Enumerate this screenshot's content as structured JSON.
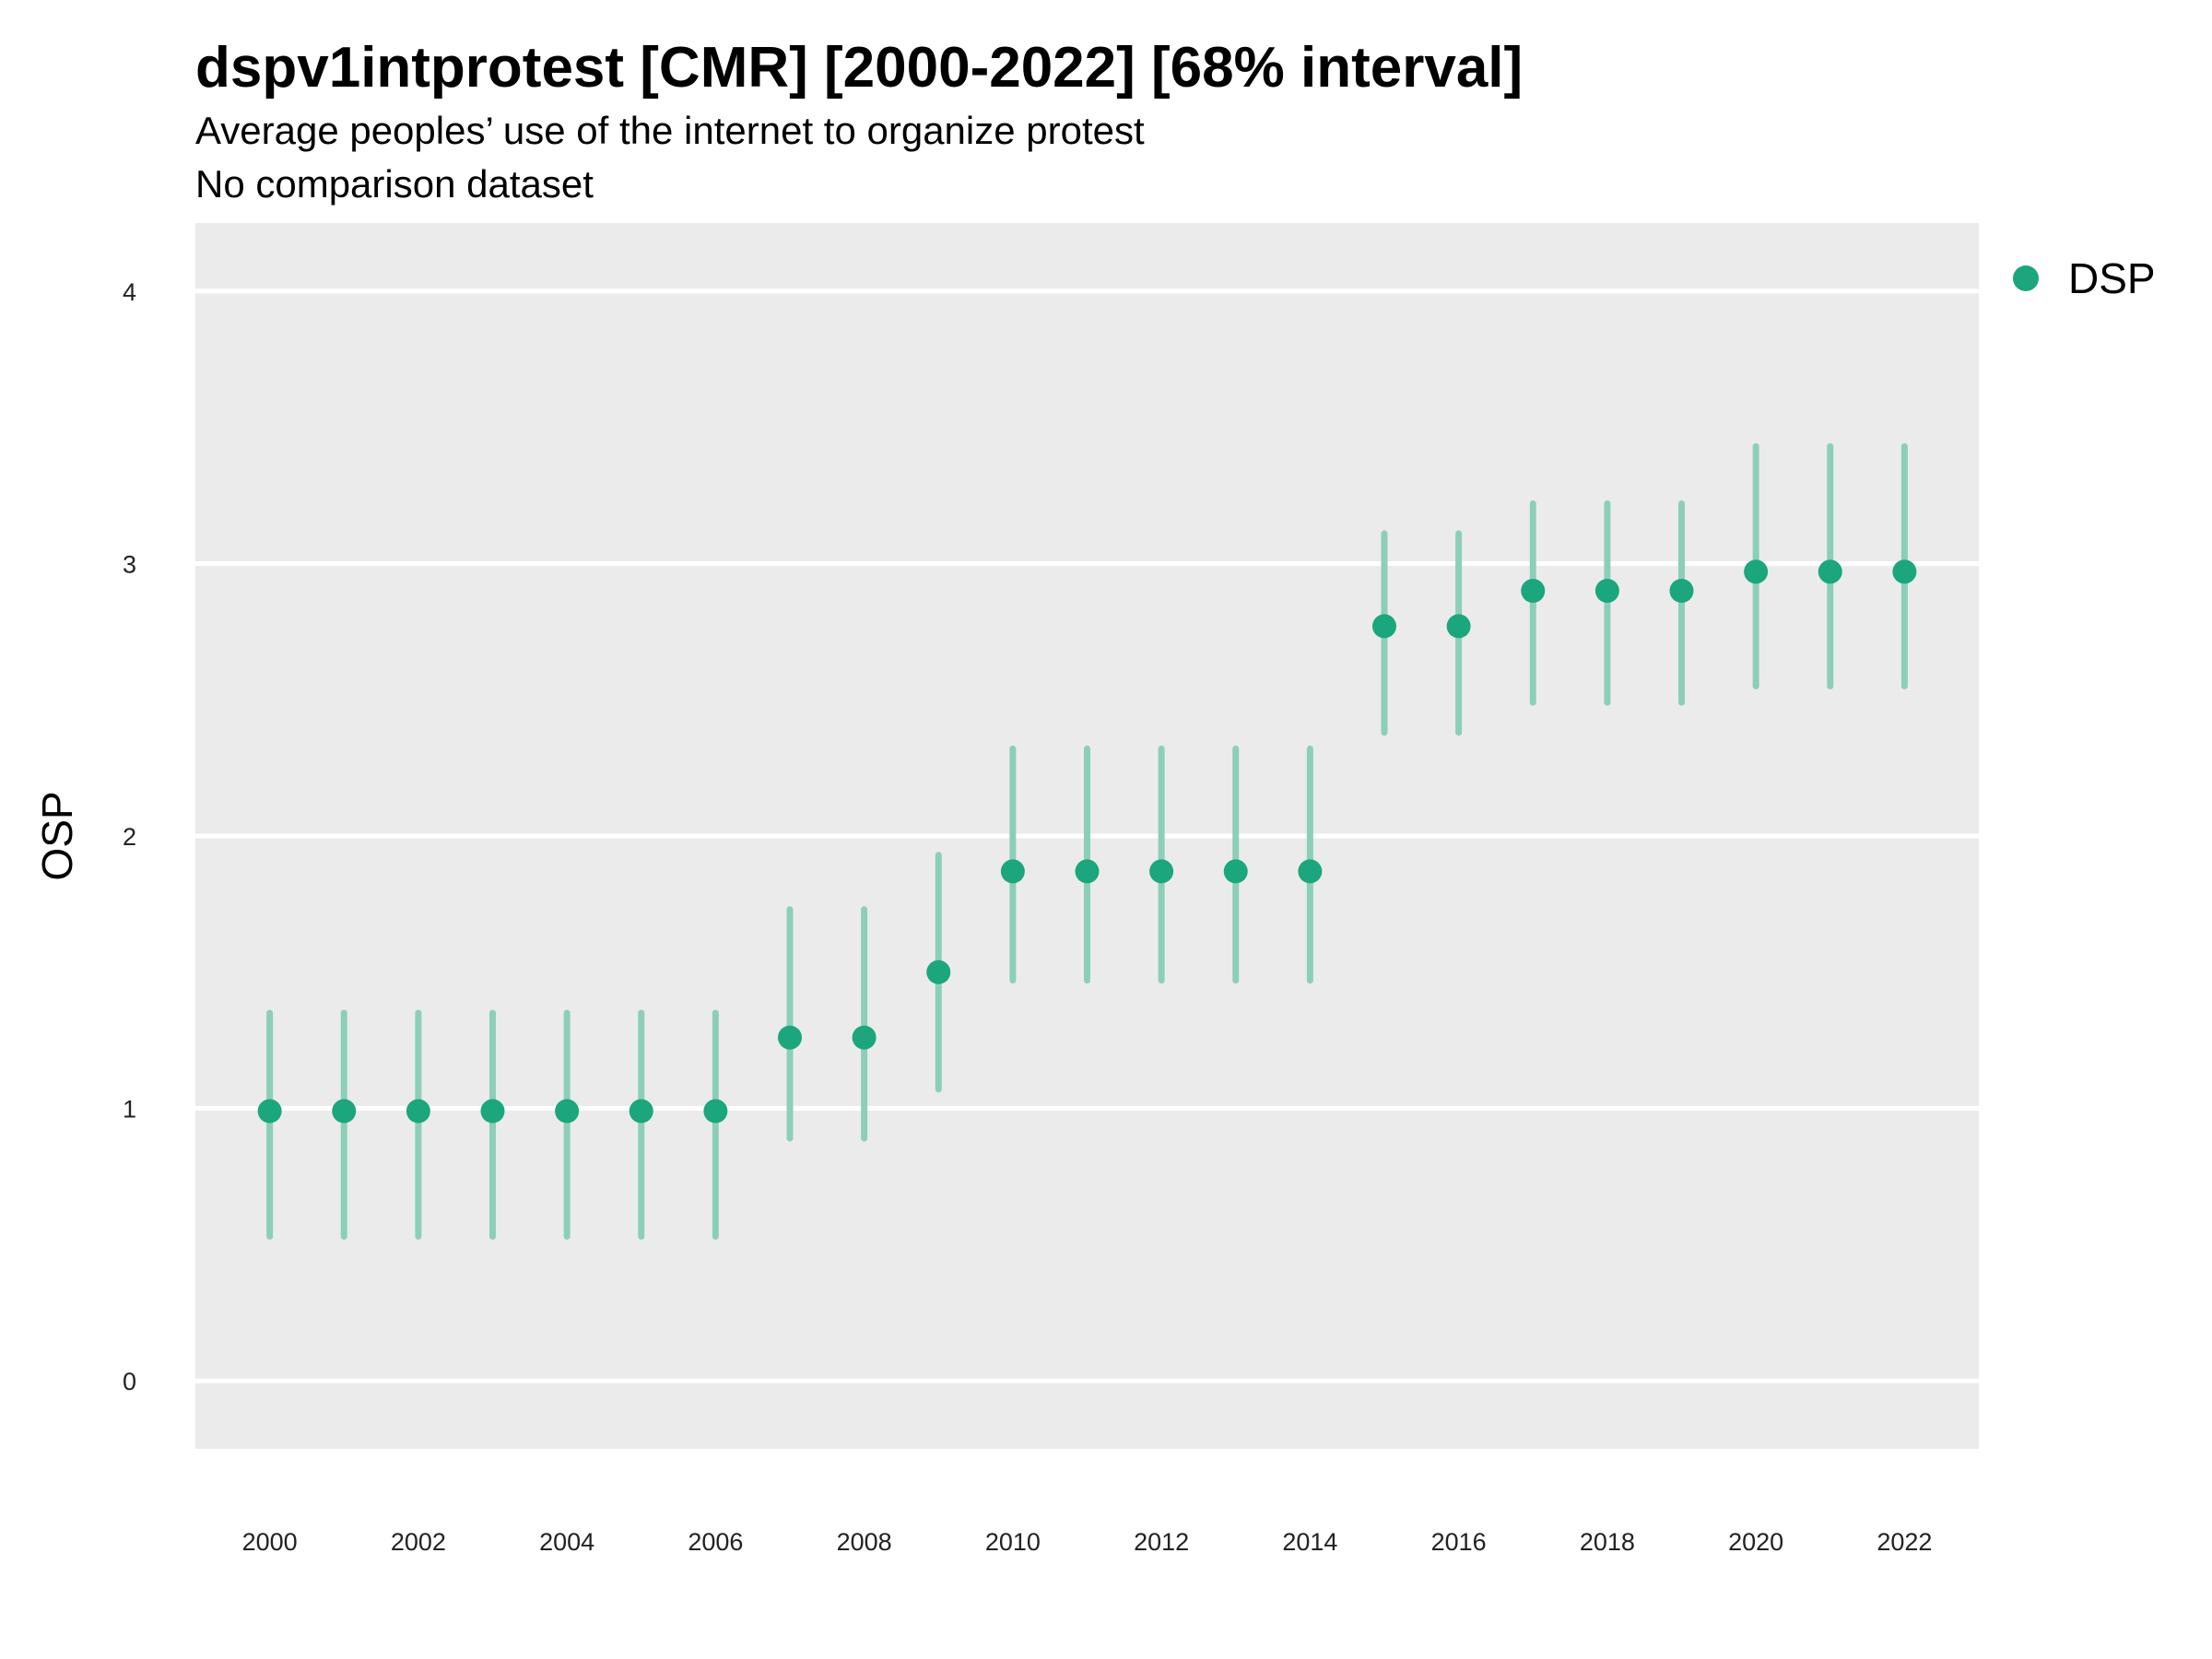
{
  "chart_data": {
    "type": "scatter",
    "title": "dspv1intprotest [CMR] [2000-2022] [68% interval]",
    "subtitle": "Average peoples’ use of the internet to organize protest",
    "subtitle2": "No comparison dataset",
    "xlabel": "",
    "ylabel": "OSP",
    "ylim": [
      -0.25,
      4.25
    ],
    "xlim": [
      1999,
      2023
    ],
    "y_ticks": [
      0,
      1,
      2,
      3,
      4
    ],
    "x_ticks": [
      2000,
      2002,
      2004,
      2006,
      2008,
      2010,
      2012,
      2014,
      2016,
      2018,
      2020,
      2022
    ],
    "grid": true,
    "legend_position": "top-right",
    "series": [
      {
        "name": "DSP",
        "color": "#1ba67d",
        "interval_color": "#8ccfb8",
        "x": [
          2000,
          2001,
          2002,
          2003,
          2004,
          2005,
          2006,
          2007,
          2008,
          2009,
          2010,
          2011,
          2012,
          2013,
          2014,
          2015,
          2016,
          2017,
          2018,
          2019,
          2020,
          2021,
          2022
        ],
        "y": [
          0.99,
          0.99,
          0.99,
          0.99,
          0.99,
          0.99,
          0.99,
          1.26,
          1.26,
          1.5,
          1.87,
          1.87,
          1.87,
          1.87,
          1.87,
          2.77,
          2.77,
          2.9,
          2.9,
          2.9,
          2.97,
          2.97,
          2.97
        ],
        "lower": [
          0.53,
          0.53,
          0.53,
          0.53,
          0.53,
          0.53,
          0.53,
          0.89,
          0.89,
          1.07,
          1.47,
          1.47,
          1.47,
          1.47,
          1.47,
          2.38,
          2.38,
          2.49,
          2.49,
          2.49,
          2.55,
          2.55,
          2.55
        ],
        "upper": [
          1.35,
          1.35,
          1.35,
          1.35,
          1.35,
          1.35,
          1.35,
          1.73,
          1.73,
          1.93,
          2.32,
          2.32,
          2.32,
          2.32,
          2.32,
          3.11,
          3.11,
          3.22,
          3.22,
          3.22,
          3.43,
          3.43,
          3.43
        ]
      }
    ]
  }
}
